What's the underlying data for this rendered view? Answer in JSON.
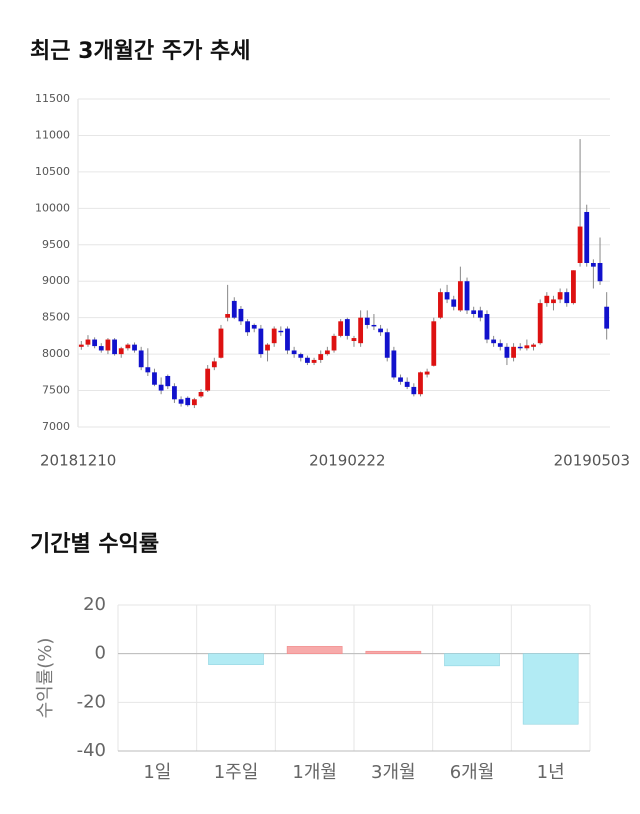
{
  "chart_data": [
    {
      "type": "candlestick",
      "title": "최근 3개월간 주가 추세",
      "categories": [
        "20181210",
        null,
        null,
        null,
        null,
        null,
        null,
        null,
        null,
        null,
        null,
        null,
        null,
        null,
        null,
        null,
        null,
        null,
        null,
        null,
        null,
        null,
        null,
        null,
        null,
        null,
        null,
        null,
        null,
        null,
        null,
        null,
        null,
        null,
        null,
        null,
        null,
        null,
        null,
        null,
        "20190222",
        null,
        null,
        null,
        null,
        null,
        null,
        null,
        null,
        null,
        null,
        null,
        null,
        null,
        null,
        null,
        null,
        null,
        null,
        null,
        null,
        null,
        null,
        null,
        null,
        null,
        null,
        null,
        null,
        null,
        null,
        null,
        null,
        null,
        null,
        null,
        null,
        null,
        null,
        "20190503"
      ],
      "open": [
        8100,
        8130,
        8200,
        8110,
        8050,
        8200,
        8000,
        8080,
        8130,
        8050,
        7820,
        7750,
        7580,
        7700,
        7560,
        7380,
        7400,
        7300,
        7420,
        7500,
        7820,
        7950,
        8500,
        8730,
        8620,
        8450,
        8400,
        8350,
        8050,
        8150,
        8320,
        8350,
        8050,
        8000,
        7950,
        7880,
        7920,
        8000,
        8050,
        8250,
        8480,
        8180,
        8150,
        8500,
        8400,
        8350,
        8300,
        8050,
        7680,
        7620,
        7550,
        7450,
        7720,
        7840,
        8500,
        8850,
        8750,
        8600,
        9000,
        8600,
        8600,
        8550,
        8200,
        8150,
        8100,
        7950,
        8100,
        8080,
        8100,
        8150,
        8700,
        8700,
        8750,
        8850,
        8700,
        9250,
        9950,
        9250,
        9250,
        8650
      ],
      "high": [
        8180,
        8260,
        8230,
        8150,
        8220,
        8220,
        8100,
        8150,
        8160,
        8100,
        8080,
        7800,
        7680,
        7720,
        7600,
        7420,
        7420,
        7400,
        7520,
        7850,
        7950,
        8400,
        8950,
        8780,
        8660,
        8480,
        8420,
        8400,
        8150,
        8380,
        8380,
        8380,
        8100,
        8020,
        7980,
        7950,
        8050,
        8100,
        8280,
        8480,
        8500,
        8250,
        8600,
        8600,
        8550,
        8400,
        8350,
        8100,
        7720,
        7680,
        7600,
        7760,
        7800,
        8500,
        8900,
        8950,
        8800,
        9200,
        9050,
        8650,
        8650,
        8600,
        8250,
        8200,
        8150,
        8150,
        8150,
        8200,
        8150,
        8750,
        8850,
        8800,
        8900,
        8900,
        9150,
        10950,
        10050,
        9300,
        9600,
        8850
      ],
      "low": [
        8060,
        8100,
        8080,
        8020,
        8000,
        7980,
        7950,
        8050,
        8020,
        7780,
        7700,
        7560,
        7450,
        7520,
        7330,
        7280,
        7280,
        7260,
        7400,
        7480,
        7780,
        7940,
        8450,
        8480,
        8400,
        8250,
        8300,
        7950,
        7900,
        8100,
        8250,
        8000,
        7950,
        7900,
        7850,
        7850,
        7880,
        7980,
        8020,
        8230,
        8200,
        8100,
        8100,
        8350,
        8330,
        8250,
        7900,
        7650,
        7580,
        7520,
        7420,
        7420,
        7680,
        7830,
        8480,
        8700,
        8600,
        8580,
        8550,
        8500,
        8450,
        8150,
        8100,
        8050,
        7850,
        7900,
        8050,
        8050,
        8050,
        8130,
        8650,
        8600,
        8700,
        8650,
        8680,
        9200,
        9200,
        8900,
        8950,
        8200
      ],
      "close": [
        8130,
        8200,
        8110,
        8050,
        8200,
        8000,
        8080,
        8130,
        8050,
        7820,
        7750,
        7580,
        7500,
        7560,
        7380,
        7320,
        7300,
        7380,
        7480,
        7800,
        7900,
        8350,
        8550,
        8500,
        8450,
        8300,
        8350,
        8000,
        8130,
        8350,
        8300,
        8050,
        8000,
        7950,
        7880,
        7920,
        8000,
        8050,
        8250,
        8450,
        8250,
        8220,
        8500,
        8400,
        8380,
        8300,
        7950,
        7680,
        7620,
        7550,
        7450,
        7750,
        7760,
        8450,
        8850,
        8750,
        8650,
        9000,
        8600,
        8550,
        8500,
        8200,
        8150,
        8100,
        7950,
        8100,
        8080,
        8120,
        8130,
        8700,
        8800,
        8750,
        8850,
        8700,
        9150,
        9750,
        9250,
        9200,
        9000,
        8350
      ],
      "up_color": "#dd1111",
      "down_color": "#1111cc",
      "ylim": [
        7000,
        11500
      ],
      "yticks": [
        7000,
        7500,
        8000,
        8500,
        9000,
        9500,
        10000,
        10500,
        11000,
        11500
      ],
      "grid": true
    },
    {
      "type": "bar",
      "title": "기간별 수익률",
      "ylabel": "수익률(%)",
      "categories": [
        "1일",
        "1주일",
        "1개월",
        "3개월",
        "6개월",
        "1년"
      ],
      "values": [
        0,
        -4.5,
        3,
        1,
        -5,
        -29
      ],
      "positive_color": "#f7aaaa",
      "negative_color": "#b2ebf4",
      "ylim": [
        -40,
        20
      ],
      "yticks": [
        -40,
        -20,
        0,
        20
      ],
      "grid": true
    }
  ]
}
